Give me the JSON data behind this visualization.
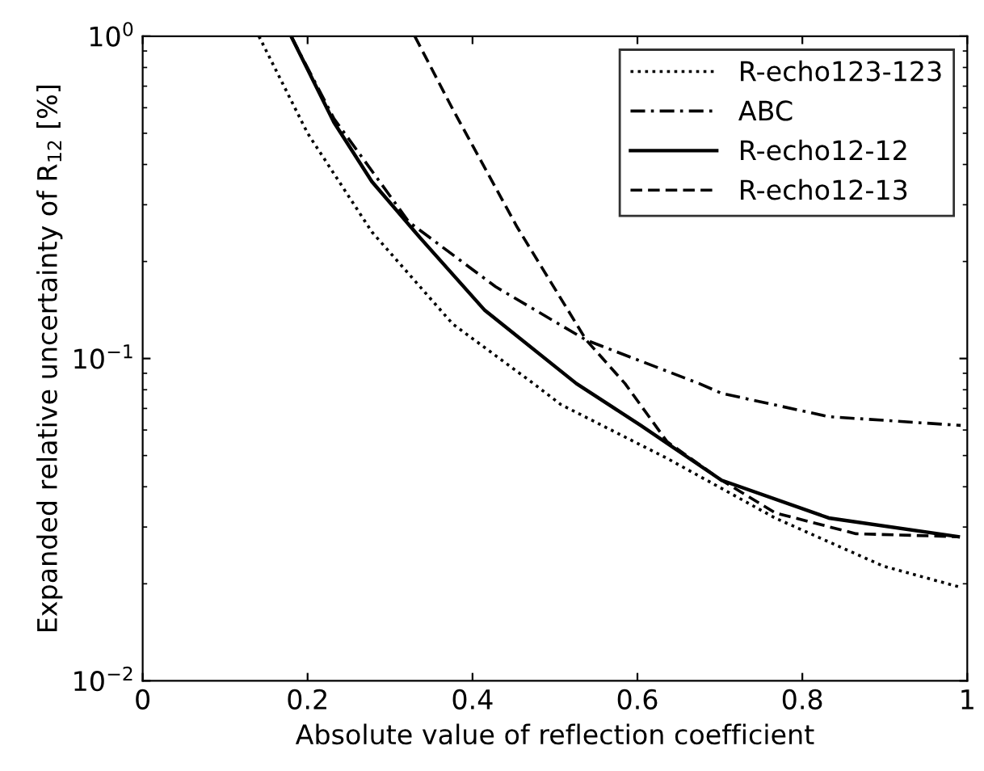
{
  "chart_data": {
    "type": "line",
    "xlabel": "Absolute value of reflection coefficient",
    "ylabel": "Expanded relative uncertainty of R$_{12}$ [%]",
    "log": "y",
    "xlim": [
      0,
      1
    ],
    "ylim": [
      0.01,
      1
    ],
    "xticks": [
      0,
      0.2,
      0.4,
      0.6,
      0.8,
      1
    ],
    "yticks": [
      {
        "value": 0.01,
        "label": "10$^{−2}$"
      },
      {
        "value": 0.1,
        "label": "10$^{−1}$"
      },
      {
        "value": 1,
        "label": "10$^{0}$"
      }
    ],
    "grid": false,
    "legend": "top right",
    "series": [
      {
        "name": "R-echo123-123",
        "color": "#000000",
        "line_style": "dotted",
        "x": [
          0.141,
          0.2,
          0.278,
          0.376,
          0.474,
          0.507,
          0.636,
          0.767,
          0.898,
          0.992
        ],
        "values": [
          1,
          0.5,
          0.247,
          0.128,
          0.0836,
          0.072,
          0.049,
          0.032,
          0.0227,
          0.0195
        ]
      },
      {
        "name": "ABC",
        "color": "#000000",
        "line_style": "dashdot",
        "x": [
          0.18,
          0.232,
          0.323,
          0.428,
          0.538,
          0.675,
          0.702,
          0.832,
          0.992
        ],
        "values": [
          1,
          0.555,
          0.265,
          0.167,
          0.114,
          0.0836,
          0.078,
          0.066,
          0.062
        ]
      },
      {
        "name": "R-echo12-12",
        "color": "#000000",
        "line_style": "solid",
        "x": [
          0.18,
          0.232,
          0.278,
          0.337,
          0.415,
          0.526,
          0.604,
          0.702,
          0.832,
          0.989
        ],
        "values": [
          1,
          0.54,
          0.354,
          0.236,
          0.141,
          0.0836,
          0.062,
          0.0419,
          0.032,
          0.028
        ]
      },
      {
        "name": "R-echo12-13",
        "color": "#000000",
        "line_style": "dashed",
        "x": [
          0.33,
          0.376,
          0.454,
          0.538,
          0.585,
          0.636,
          0.702,
          0.767,
          0.865,
          0.989
        ],
        "values": [
          1,
          0.594,
          0.256,
          0.114,
          0.0836,
          0.0552,
          0.0419,
          0.0332,
          0.0286,
          0.028
        ]
      }
    ]
  }
}
